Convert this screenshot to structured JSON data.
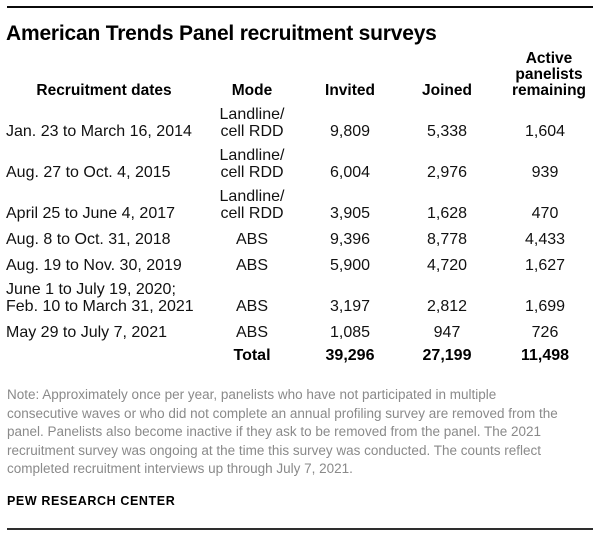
{
  "title": "American Trends Panel recruitment surveys",
  "chart_data": {
    "type": "table",
    "title": "American Trends Panel recruitment surveys",
    "columns": [
      "Recruitment dates",
      "Mode",
      "Invited",
      "Joined",
      "Active panelists remaining"
    ],
    "rows": [
      {
        "dates": "Jan. 23 to March 16, 2014",
        "mode": [
          "Landline/",
          "cell RDD"
        ],
        "invited": "9,809",
        "joined": "5,338",
        "active": "1,604"
      },
      {
        "dates": "Aug. 27 to Oct. 4, 2015",
        "mode": [
          "Landline/",
          "cell RDD"
        ],
        "invited": "6,004",
        "joined": "2,976",
        "active": "939"
      },
      {
        "dates": "April 25 to June 4, 2017",
        "mode": [
          "Landline/",
          "cell RDD"
        ],
        "invited": "3,905",
        "joined": "1,628",
        "active": "470"
      },
      {
        "dates": "Aug. 8 to Oct. 31, 2018",
        "mode": [
          "ABS"
        ],
        "invited": "9,396",
        "joined": "8,778",
        "active": "4,433"
      },
      {
        "dates": "Aug. 19 to Nov. 30, 2019",
        "mode": [
          "ABS"
        ],
        "invited": "5,900",
        "joined": "4,720",
        "active": "1,627"
      },
      {
        "dates": "June 1 to July 19, 2020; Feb. 10 to March 31, 2021",
        "mode": [
          "ABS"
        ],
        "invited": "3,197",
        "joined": "2,812",
        "active": "1,699"
      },
      {
        "dates": "May 29 to July 7, 2021",
        "mode": [
          "ABS"
        ],
        "invited": "1,085",
        "joined": "947",
        "active": "726"
      }
    ],
    "total": {
      "label": "Total",
      "invited": "39,296",
      "joined": "27,199",
      "active": "11,498"
    }
  },
  "note": "Note: Approximately once per year, panelists who have not participated in multiple consecutive waves or who did not complete an annual profiling survey are removed from the panel. Panelists also become inactive if they ask to be removed from the panel. The 2021 recruitment survey was ongoing at the time this survey was conducted. The counts reflect completed recruitment interviews up through July 7, 2021.",
  "source": "PEW RESEARCH CENTER",
  "colors": {
    "text": "#111111",
    "note_gray": "#8a8a8a",
    "rule_top": "#0b0b0b",
    "rule_bottom": "#2e2e2e"
  }
}
